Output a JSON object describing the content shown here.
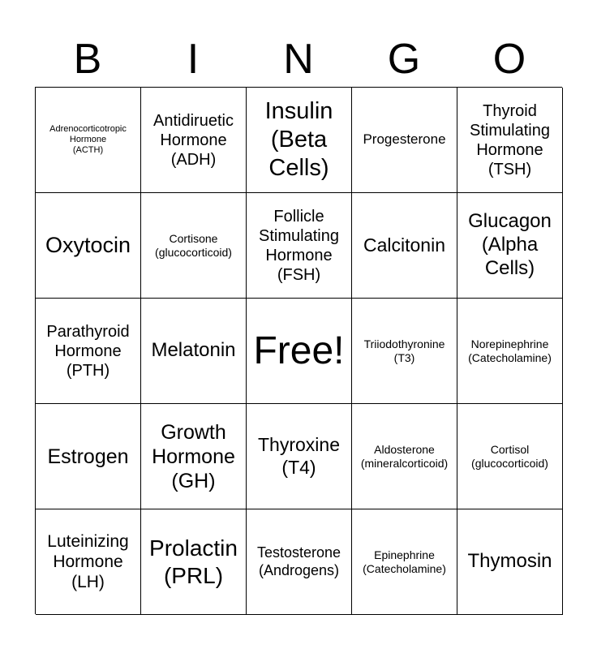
{
  "header": {
    "letters": [
      "B",
      "I",
      "N",
      "G",
      "O"
    ]
  },
  "cells": [
    "Adrenocorticotropic\nHormone\n(ACTH)",
    "Antidiruetic\nHormone\n(ADH)",
    "Insulin\n(Beta\nCells)",
    "Progesterone",
    "Thyroid\nStimulating\nHormone\n(TSH)",
    "Oxytocin",
    "Cortisone\n(glucocorticoid)",
    "Follicle\nStimulating\nHormone\n(FSH)",
    "Calcitonin",
    "Glucagon\n(Alpha\nCells)",
    "Parathyroid\nHormone\n(PTH)",
    "Melatonin",
    "Free!",
    "Triiodothyronine\n(T3)",
    "Norepinephrine\n(Catecholamine)",
    "Estrogen",
    "Growth\nHormone\n(GH)",
    "Thyroxine\n(T4)",
    "Aldosterone\n(mineralcorticoid)",
    "Cortisol\n(glucocorticoid)",
    "Luteinizing\nHormone\n(LH)",
    "Prolactin\n(PRL)",
    "Testosterone\n(Androgens)",
    "Epinephrine\n(Catecholamine)",
    "Thymosin"
  ]
}
